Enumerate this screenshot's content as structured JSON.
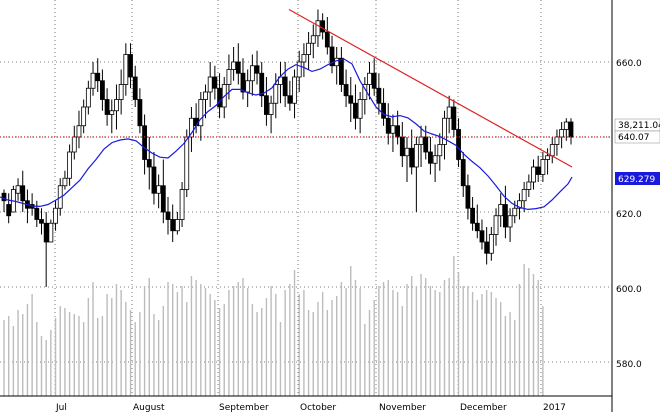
{
  "chart_data": {
    "type": "candlestick",
    "title": "",
    "xlabel": "",
    "ylabel": "",
    "x_tick_labels": [
      "Jul",
      "August",
      "September",
      "October",
      "November",
      "December",
      "2017"
    ],
    "y_ticks": [
      580,
      600,
      620,
      640,
      660
    ],
    "y_tick_labels": [
      "580.0",
      "600.0",
      "620.0",
      "640.0",
      "660.0"
    ],
    "ylim": [
      576,
      680
    ],
    "grid": true,
    "price_tags": [
      {
        "value": 640.07,
        "label": "640.07",
        "volume_label": "38,211.04",
        "color": "#000000"
      },
      {
        "value": 629.279,
        "label": "629.279",
        "color": "#1a1adc"
      }
    ],
    "reference_line": {
      "value": 640,
      "color": "#dd2222",
      "style": "dotted"
    },
    "trendline": {
      "start": {
        "value": 674,
        "at": "late September"
      },
      "end": {
        "value": 632,
        "at": "late December"
      },
      "color": "#dd2222"
    },
    "moving_average": {
      "color": "#1a1adc",
      "points": [
        [
          0,
          624
        ],
        [
          8,
          623.2
        ],
        [
          16,
          622.8
        ],
        [
          24,
          622.2
        ],
        [
          32,
          621.6
        ],
        [
          40,
          621.5
        ],
        [
          48,
          622
        ],
        [
          56,
          623.2
        ],
        [
          64,
          624.5
        ],
        [
          72,
          626.5
        ],
        [
          80,
          628.5
        ],
        [
          88,
          631.5
        ],
        [
          96,
          634
        ],
        [
          104,
          636.8
        ],
        [
          112,
          638.5
        ],
        [
          120,
          639.2
        ],
        [
          128,
          639.5
        ],
        [
          136,
          639
        ],
        [
          144,
          637.2
        ],
        [
          152,
          635.7
        ],
        [
          160,
          634.6
        ],
        [
          168,
          634.4
        ],
        [
          176,
          636.2
        ],
        [
          184,
          638.3
        ],
        [
          192,
          641.2
        ],
        [
          200,
          644.6
        ],
        [
          208,
          646.8
        ],
        [
          216,
          648.4
        ],
        [
          224,
          650.8
        ],
        [
          232,
          652.7
        ],
        [
          240,
          652.7
        ],
        [
          248,
          651.8
        ],
        [
          256,
          651.2
        ],
        [
          264,
          651.7
        ],
        [
          272,
          653.1
        ],
        [
          280,
          656.1
        ],
        [
          288,
          658.1
        ],
        [
          296,
          659.3
        ],
        [
          304,
          658.5
        ],
        [
          312,
          657.5
        ],
        [
          320,
          658.1
        ],
        [
          328,
          659.3
        ],
        [
          336,
          660.3
        ],
        [
          344,
          660.8
        ],
        [
          352,
          659.5
        ],
        [
          360,
          655
        ],
        [
          368,
          651.5
        ],
        [
          376,
          648
        ],
        [
          384,
          646
        ],
        [
          392,
          645.4
        ],
        [
          400,
          645.7
        ],
        [
          408,
          645.1
        ],
        [
          416,
          643.5
        ],
        [
          424,
          641.6
        ],
        [
          432,
          640.8
        ],
        [
          440,
          640.1
        ],
        [
          448,
          639
        ],
        [
          456,
          637.8
        ],
        [
          464,
          635.4
        ],
        [
          472,
          633.5
        ],
        [
          480,
          631.8
        ],
        [
          488,
          629.6
        ],
        [
          496,
          627
        ],
        [
          504,
          624.2
        ],
        [
          512,
          622.3
        ],
        [
          520,
          621.2
        ],
        [
          528,
          620.7
        ],
        [
          536,
          620.9
        ],
        [
          544,
          621.4
        ],
        [
          552,
          623.2
        ],
        [
          560,
          625.4
        ],
        [
          568,
          627.5
        ],
        [
          572,
          629.3
        ]
      ]
    },
    "candles": [
      [
        625,
        626,
        620,
        623
      ],
      [
        622,
        625,
        617,
        619
      ],
      [
        620,
        627,
        621,
        626
      ],
      [
        625,
        629,
        623,
        627
      ],
      [
        627,
        631,
        620,
        623
      ],
      [
        623,
        626,
        617,
        621
      ],
      [
        622,
        625,
        619,
        621
      ],
      [
        621,
        623,
        616,
        618
      ],
      [
        618,
        621,
        614,
        617
      ],
      [
        617,
        620,
        600,
        612
      ],
      [
        612,
        618,
        613,
        617
      ],
      [
        617,
        623,
        615,
        621
      ],
      [
        621,
        629,
        619,
        627
      ],
      [
        627,
        631,
        626,
        629
      ],
      [
        629,
        638,
        627,
        636
      ],
      [
        636,
        643,
        634,
        640
      ],
      [
        640,
        647,
        637,
        643
      ],
      [
        643,
        650,
        641,
        648
      ],
      [
        648,
        655,
        646,
        653
      ],
      [
        653,
        660,
        651,
        657
      ],
      [
        657,
        661,
        652,
        655
      ],
      [
        655,
        658,
        647,
        650
      ],
      [
        650,
        653,
        643,
        646
      ],
      [
        646,
        650,
        641,
        647
      ],
      [
        647,
        654,
        642,
        650
      ],
      [
        650,
        658,
        646,
        654
      ],
      [
        654,
        665,
        651,
        662
      ],
      [
        662,
        665,
        653,
        656
      ],
      [
        656,
        659,
        648,
        650
      ],
      [
        650,
        653,
        641,
        643
      ],
      [
        643,
        646,
        630,
        634
      ],
      [
        634,
        640,
        626,
        632
      ],
      [
        632,
        636,
        622,
        625
      ],
      [
        625,
        630,
        621,
        627
      ],
      [
        627,
        634,
        617,
        620
      ],
      [
        620,
        624,
        614,
        618
      ],
      [
        618,
        622,
        612,
        615
      ],
      [
        615,
        620,
        614,
        618
      ],
      [
        618,
        628,
        616,
        626
      ],
      [
        626,
        642,
        624,
        640
      ],
      [
        640,
        648,
        636,
        645
      ],
      [
        645,
        649,
        641,
        643
      ],
      [
        643,
        652,
        639,
        650
      ],
      [
        650,
        654,
        645,
        652
      ],
      [
        652,
        660,
        648,
        656
      ],
      [
        656,
        659,
        650,
        653
      ],
      [
        653,
        657,
        645,
        648
      ],
      [
        648,
        656,
        645,
        654
      ],
      [
        654,
        662,
        650,
        658
      ],
      [
        658,
        664,
        655,
        660
      ],
      [
        660,
        665,
        654,
        657
      ],
      [
        657,
        661,
        650,
        652
      ],
      [
        652,
        658,
        648,
        655
      ],
      [
        655,
        662,
        651,
        659
      ],
      [
        659,
        663,
        654,
        657
      ],
      [
        657,
        660,
        648,
        651
      ],
      [
        651,
        656,
        643,
        646
      ],
      [
        646,
        651,
        641,
        649
      ],
      [
        649,
        657,
        645,
        654
      ],
      [
        654,
        660,
        649,
        656
      ],
      [
        656,
        660,
        648,
        651
      ],
      [
        651,
        655,
        647,
        649
      ],
      [
        649,
        658,
        645,
        656
      ],
      [
        656,
        663,
        652,
        660
      ],
      [
        660,
        665,
        656,
        662
      ],
      [
        662,
        668,
        658,
        665
      ],
      [
        665,
        670,
        661,
        667
      ],
      [
        667,
        674,
        664,
        671
      ],
      [
        671,
        673,
        666,
        668
      ],
      [
        668,
        672,
        662,
        664
      ],
      [
        664,
        667,
        657,
        659
      ],
      [
        659,
        664,
        654,
        661
      ],
      [
        661,
        664,
        652,
        654
      ],
      [
        654,
        658,
        648,
        651
      ],
      [
        651,
        656,
        644,
        649
      ],
      [
        649,
        654,
        642,
        645
      ],
      [
        645,
        652,
        641,
        650
      ],
      [
        650,
        656,
        646,
        654
      ],
      [
        654,
        660,
        650,
        657
      ],
      [
        657,
        661,
        651,
        653
      ],
      [
        653,
        657,
        646,
        649
      ],
      [
        649,
        653,
        643,
        645
      ],
      [
        645,
        649,
        638,
        641
      ],
      [
        641,
        646,
        636,
        643
      ],
      [
        643,
        647,
        638,
        640
      ],
      [
        640,
        644,
        632,
        635
      ],
      [
        635,
        640,
        628,
        637
      ],
      [
        637,
        642,
        630,
        632
      ],
      [
        632,
        640,
        620,
        638
      ],
      [
        638,
        643,
        632,
        640
      ],
      [
        640,
        643,
        634,
        636
      ],
      [
        636,
        640,
        630,
        633
      ],
      [
        633,
        638,
        628,
        635
      ],
      [
        635,
        641,
        631,
        638
      ],
      [
        638,
        647,
        634,
        645
      ],
      [
        645,
        651,
        641,
        648
      ],
      [
        648,
        650,
        640,
        642
      ],
      [
        642,
        645,
        632,
        634
      ],
      [
        634,
        636,
        624,
        627
      ],
      [
        627,
        630,
        618,
        621
      ],
      [
        621,
        624,
        615,
        617
      ],
      [
        617,
        622,
        613,
        615
      ],
      [
        615,
        618,
        610,
        612
      ],
      [
        612,
        616,
        606,
        609
      ],
      [
        609,
        616,
        607,
        614
      ],
      [
        614,
        621,
        611,
        619
      ],
      [
        619,
        625,
        616,
        622
      ],
      [
        622,
        627,
        613,
        616
      ],
      [
        616,
        621,
        612,
        619
      ],
      [
        619,
        623,
        617,
        621
      ],
      [
        621,
        625,
        618,
        623
      ],
      [
        623,
        628,
        620,
        626
      ],
      [
        626,
        630,
        624,
        628
      ],
      [
        628,
        634,
        626,
        632
      ],
      [
        632,
        635,
        628,
        630
      ],
      [
        630,
        636,
        628,
        634
      ],
      [
        634,
        637,
        630,
        635
      ],
      [
        635,
        640,
        633,
        638
      ],
      [
        638,
        642,
        635,
        640
      ],
      [
        640,
        644,
        637,
        642
      ],
      [
        642,
        645,
        639,
        644
      ],
      [
        644,
        645,
        638,
        640
      ]
    ],
    "volume": [
      38,
      40,
      35,
      43,
      41,
      46,
      51,
      37,
      30,
      28,
      33,
      39,
      45,
      44,
      42,
      41,
      40,
      37,
      49,
      57,
      39,
      40,
      51,
      49,
      56,
      53,
      47,
      43,
      37,
      42,
      55,
      59,
      41,
      38,
      45,
      57,
      56,
      52,
      55,
      47,
      60,
      58,
      56,
      54,
      51,
      48,
      44,
      46,
      53,
      55,
      57,
      59,
      54,
      46,
      42,
      44,
      49,
      55,
      51,
      37,
      53,
      56,
      63,
      51,
      53,
      43,
      42,
      47,
      52,
      43,
      48,
      50,
      57,
      54,
      65,
      58,
      54,
      36,
      43,
      48,
      55,
      57,
      58,
      53,
      52,
      45,
      56,
      60,
      55,
      61,
      59,
      55,
      53,
      52,
      58,
      59,
      70,
      62,
      55,
      55,
      52,
      48,
      51,
      53,
      52,
      49,
      47,
      40,
      42,
      38,
      56,
      66,
      64,
      61,
      58,
      45
    ]
  }
}
